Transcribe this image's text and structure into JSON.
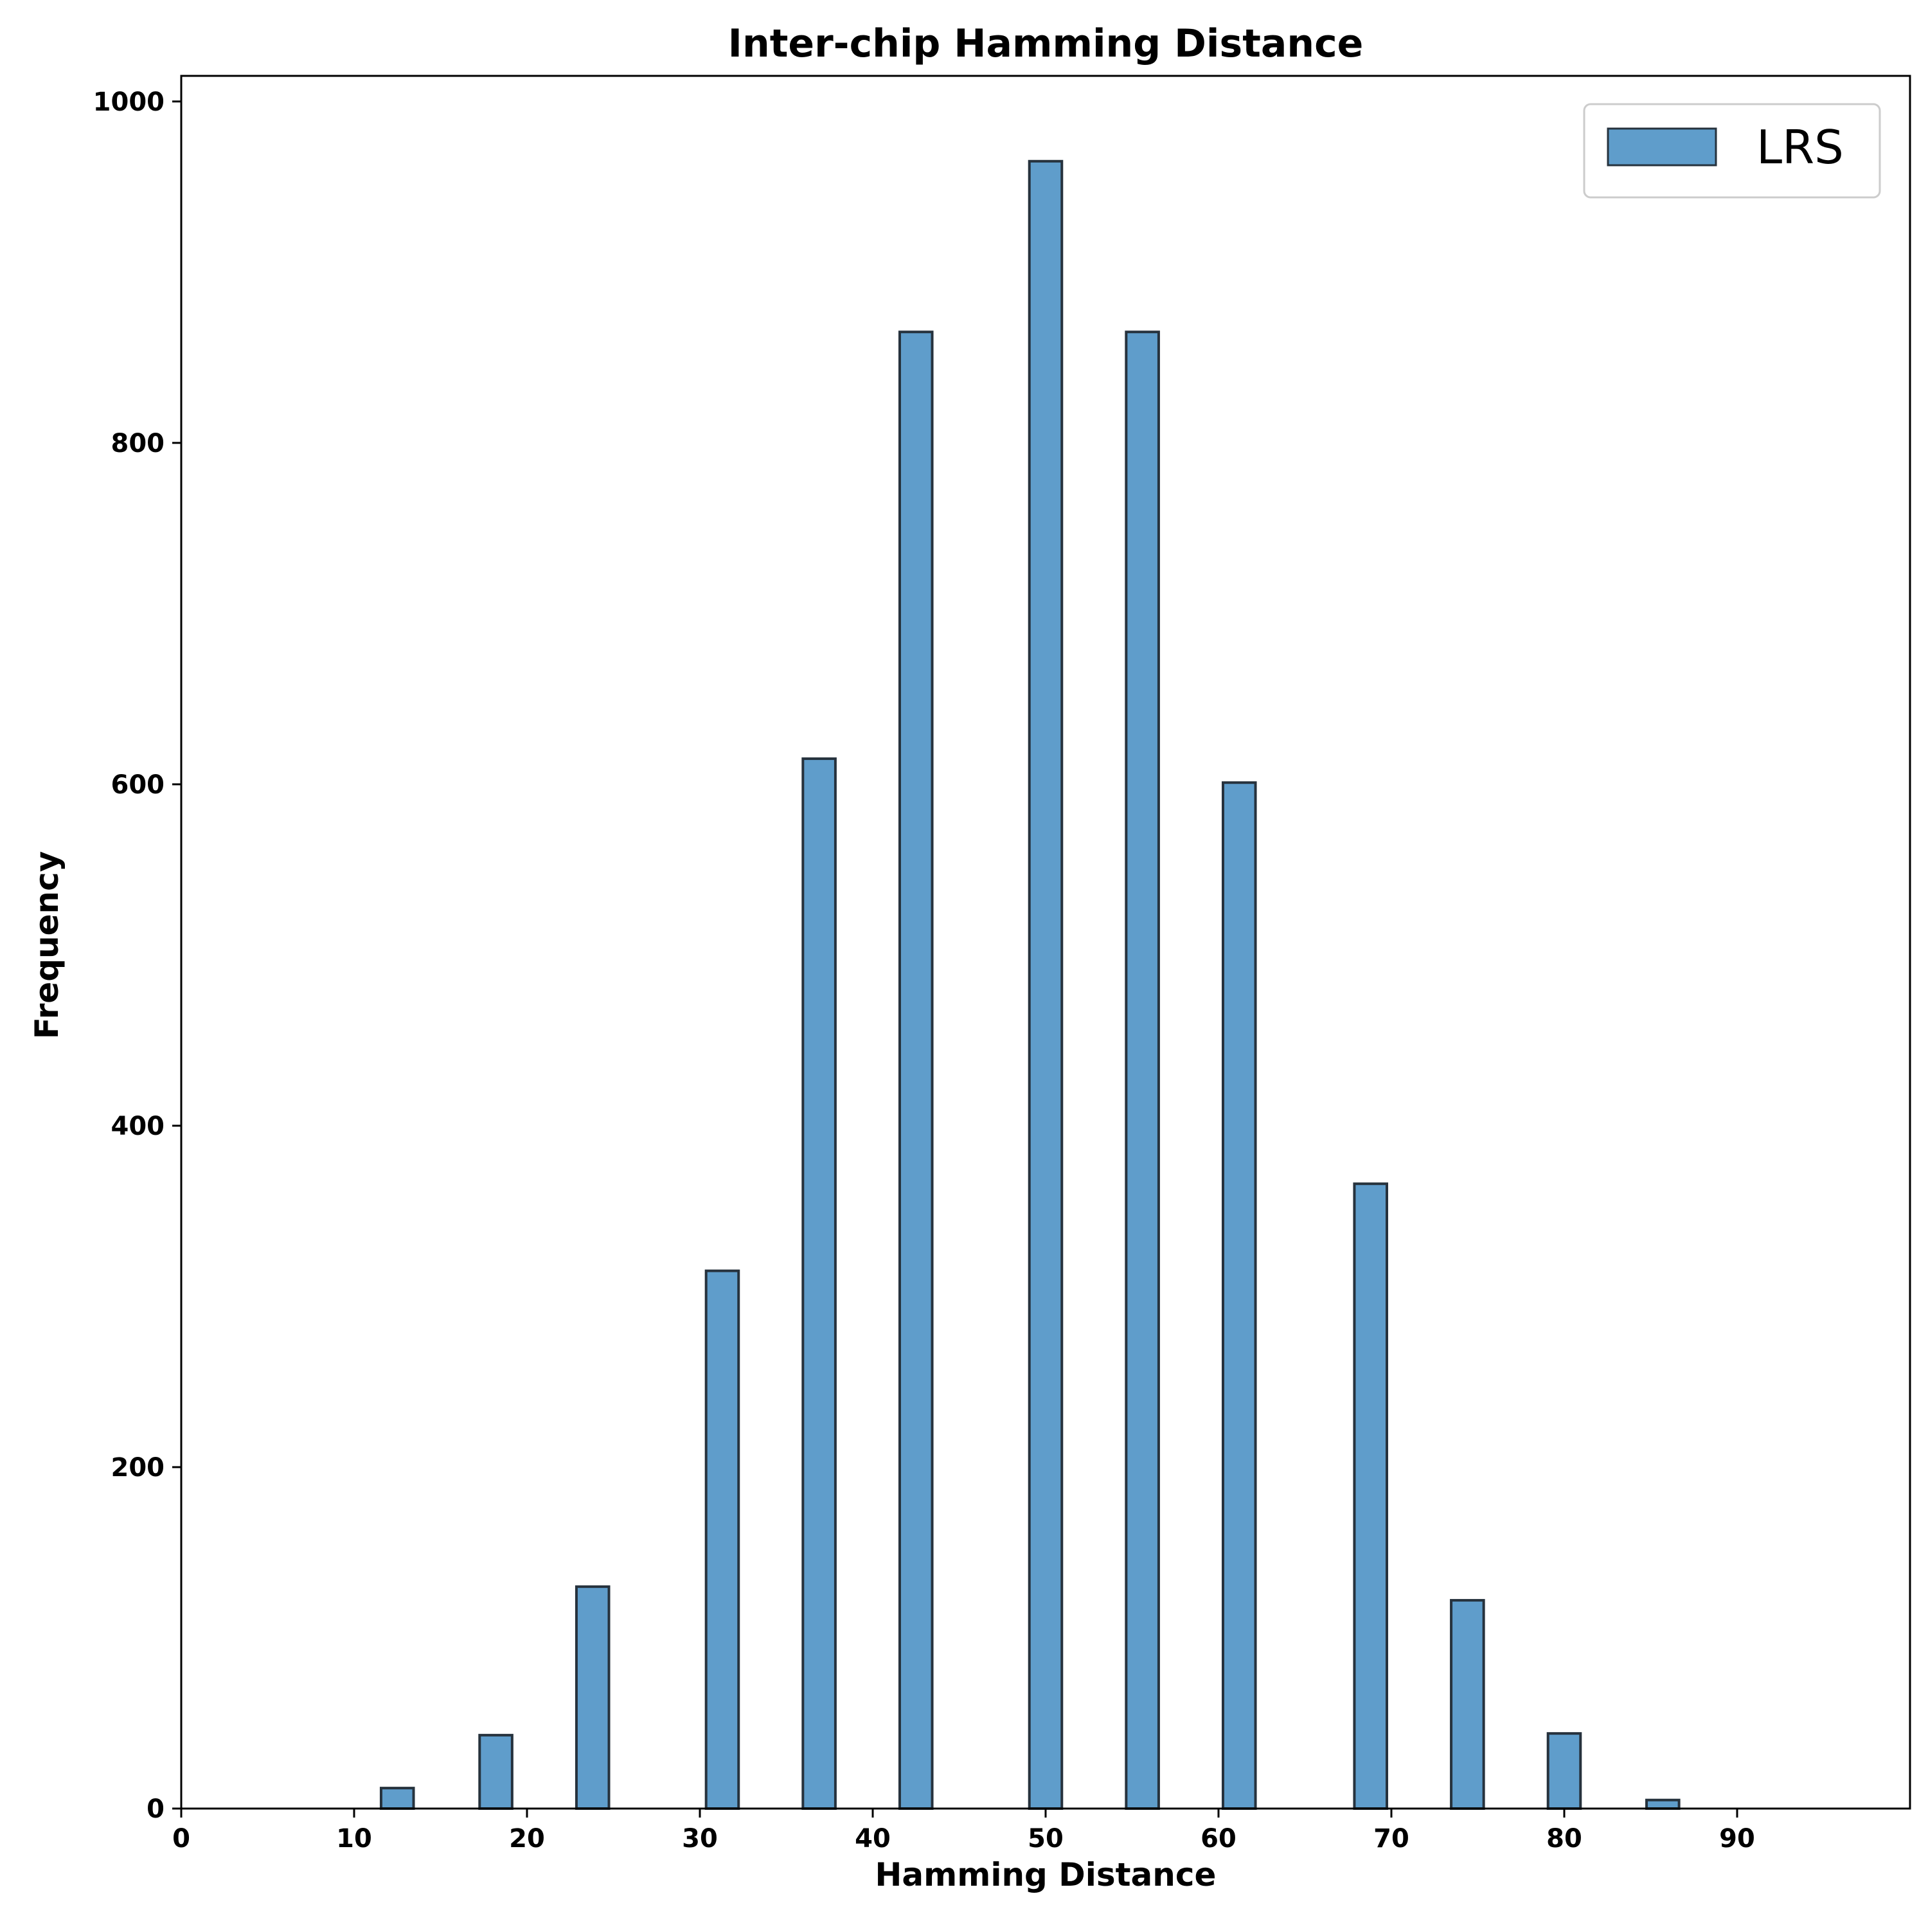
{
  "chart_data": {
    "type": "bar",
    "title": "Inter-chip Hamming Distance",
    "xlabel": "Hamming Distance",
    "ylabel": "Frequency",
    "xlim": [
      0,
      100
    ],
    "ylim": [
      0,
      1015
    ],
    "x_ticks": [
      0,
      10,
      20,
      30,
      40,
      50,
      60,
      70,
      80,
      90
    ],
    "y_ticks": [
      0,
      200,
      400,
      600,
      800,
      1000
    ],
    "grid": false,
    "legend_position": "top-right",
    "bin_width": 1.88,
    "series": [
      {
        "name": "LRS",
        "color": "#5f9dcb",
        "edge_color": "#26323d",
        "x": [
          12.5,
          18.2,
          23.8,
          31.3,
          36.9,
          42.5,
          50.0,
          55.6,
          61.2,
          68.8,
          74.4,
          80.0,
          85.7
        ],
        "values": [
          12,
          43,
          130,
          315,
          615,
          865,
          965,
          865,
          601,
          366,
          122,
          44,
          5
        ]
      }
    ]
  }
}
